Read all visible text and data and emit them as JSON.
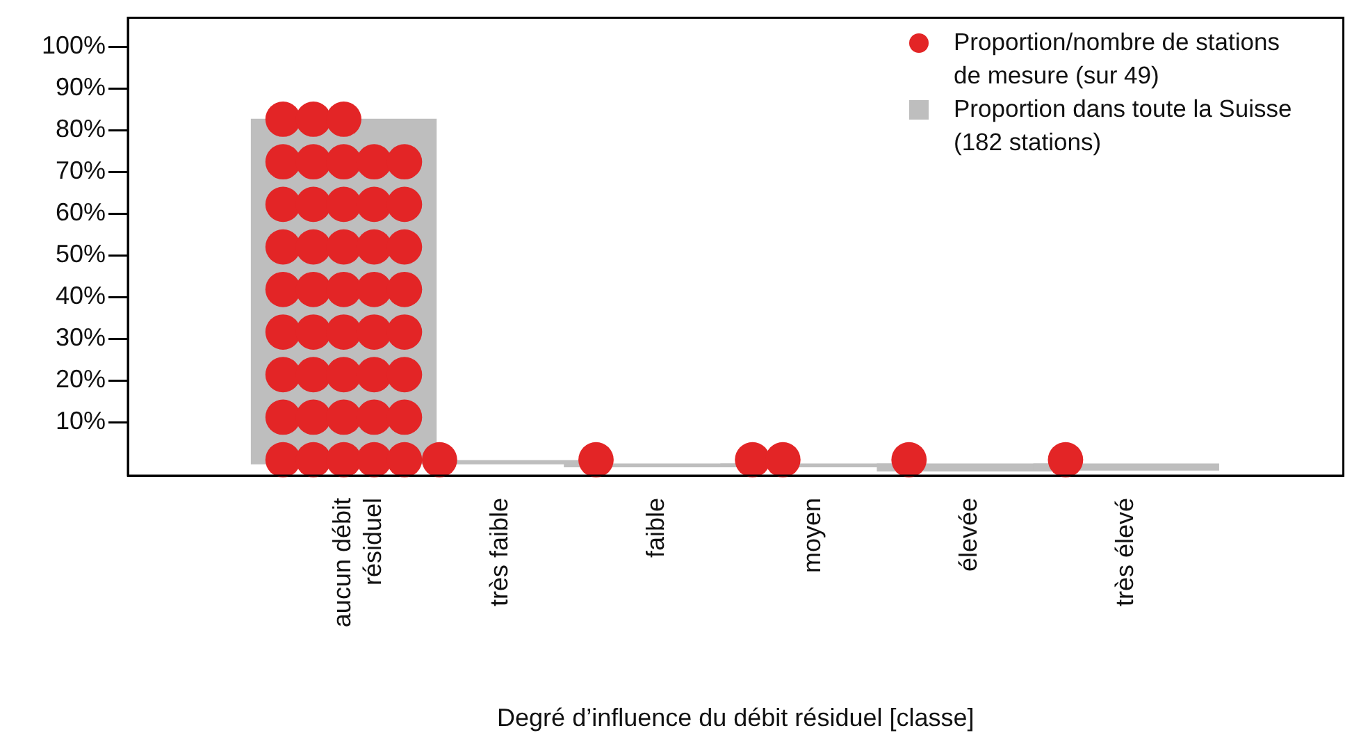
{
  "chart_data": {
    "type": "bar",
    "xlabel": "Degré d’influence du débit résiduel [classe]",
    "categories": [
      "aucun débit résiduel",
      "très faible",
      "faible",
      "moyen",
      "élevée",
      "très élevé"
    ],
    "ylim": [
      -2.8,
      106.9
    ],
    "yticks": [
      {
        "value": 10,
        "label": "10%"
      },
      {
        "value": 20,
        "label": "20%"
      },
      {
        "value": 30,
        "label": "30%"
      },
      {
        "value": 40,
        "label": "40%"
      },
      {
        "value": 50,
        "label": "50%"
      },
      {
        "value": 60,
        "label": "60%"
      },
      {
        "value": 70,
        "label": "70%"
      },
      {
        "value": 80,
        "label": "80%"
      },
      {
        "value": 90,
        "label": "90%"
      },
      {
        "value": 100,
        "label": "100%"
      }
    ],
    "series": [
      {
        "type": "scatter",
        "name": "Proportion/nombre de stations de mesure (sur 49)",
        "color": "#e32526",
        "x": [
          "aucun débit résiduel",
          "aucun débit résiduel",
          "aucun débit résiduel",
          "aucun débit résiduel",
          "aucun débit résiduel",
          "aucun débit résiduel",
          "aucun débit résiduel",
          "aucun débit résiduel",
          "aucun débit résiduel",
          "aucun débit résiduel",
          "aucun débit résiduel",
          "aucun débit résiduel",
          "aucun débit résiduel",
          "aucun débit résiduel",
          "aucun débit résiduel",
          "aucun débit résiduel",
          "aucun débit résiduel",
          "aucun débit résiduel",
          "aucun débit résiduel",
          "aucun débit résiduel",
          "aucun débit résiduel",
          "aucun débit résiduel",
          "aucun débit résiduel",
          "aucun débit résiduel",
          "aucun débit résiduel",
          "aucun débit résiduel",
          "aucun débit résiduel",
          "aucun débit résiduel",
          "aucun débit résiduel",
          "aucun débit résiduel",
          "aucun débit résiduel",
          "aucun débit résiduel",
          "aucun débit résiduel",
          "aucun débit résiduel",
          "aucun débit résiduel",
          "aucun débit résiduel",
          "aucun débit résiduel",
          "aucun débit résiduel",
          "aucun débit résiduel",
          "aucun débit résiduel",
          "aucun débit résiduel",
          "aucun débit résiduel",
          "aucun débit résiduel",
          "très faible",
          "faible",
          "moyen",
          "moyen",
          "élevée",
          "très élevé"
        ],
        "values": [
          1,
          1,
          1,
          1,
          1,
          11.2,
          11.2,
          11.2,
          11.2,
          11.2,
          21.4,
          21.4,
          21.4,
          21.4,
          21.4,
          31.6,
          31.6,
          31.6,
          31.6,
          31.6,
          41.8,
          41.8,
          41.8,
          41.8,
          41.8,
          52,
          52,
          52,
          52,
          52,
          62.2,
          62.2,
          62.2,
          62.2,
          62.2,
          72.4,
          72.4,
          72.4,
          72.4,
          72.4,
          82.6,
          82.6,
          82.6,
          1,
          1,
          1,
          1,
          1,
          1
        ]
      },
      {
        "name": "Proportion dans toute la Suisse (182 stations)",
        "color": "#bebebe",
        "values": [
          82.6,
          0.8,
          -0.7,
          -0.7,
          -1.7,
          -1.5
        ]
      }
    ],
    "legend": "top right",
    "grid": false,
    "marker": "circle"
  }
}
